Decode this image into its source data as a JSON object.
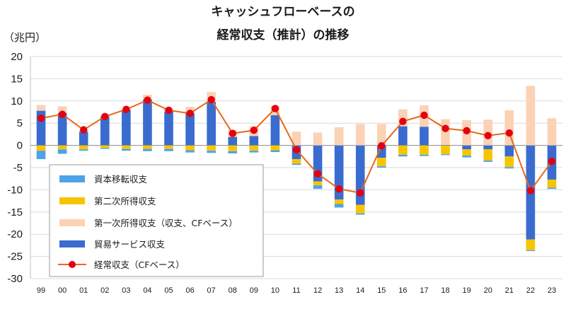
{
  "chart_data": {
    "type": "bar",
    "stacked": true,
    "title": "キャッシュフローベースの",
    "title_line2": "経常収支（推計）の推移",
    "ylabel": "（兆円）",
    "xlabel": "",
    "ylim": [
      -30,
      20
    ],
    "yticks": [
      "20",
      "15",
      "10",
      "5",
      "0",
      "-5",
      "-10",
      "-15",
      "-20",
      "-25",
      "-30"
    ],
    "ytick_values": [
      20,
      15,
      10,
      5,
      0,
      -5,
      -10,
      -15,
      -20,
      -25,
      -30
    ],
    "categories": [
      "99",
      "00",
      "01",
      "02",
      "03",
      "04",
      "05",
      "06",
      "07",
      "08",
      "09",
      "10",
      "11",
      "12",
      "13",
      "14",
      "15",
      "16",
      "17",
      "18",
      "19",
      "20",
      "21",
      "22",
      "23"
    ],
    "grid": true,
    "series": [
      {
        "name": "貿易サービス収支",
        "color": "#3A6CCF",
        "values": [
          7.8,
          7.3,
          3.1,
          6.5,
          8.0,
          10.3,
          7.6,
          7.3,
          9.8,
          1.9,
          2.1,
          6.8,
          -3.1,
          -8.1,
          -12.2,
          -13.4,
          -2.8,
          4.3,
          4.2,
          0.1,
          -0.9,
          -0.9,
          -2.5,
          -21.2,
          -7.7
        ]
      },
      {
        "name": "第二次所得収支",
        "color": "#F7C500",
        "values": [
          -1.2,
          -0.9,
          -0.9,
          -0.6,
          -0.8,
          -0.8,
          -0.8,
          -1.1,
          -1.2,
          -1.3,
          -1.2,
          -1.1,
          -1.0,
          -0.9,
          -1.0,
          -1.9,
          -1.9,
          -2.1,
          -2.1,
          -2.0,
          -1.4,
          -2.5,
          -2.4,
          -2.4,
          -1.8
        ]
      },
      {
        "name": "資本移転収支",
        "color": "#4EA3E6",
        "values": [
          -1.9,
          -1.0,
          -0.3,
          -0.2,
          -0.4,
          -0.5,
          -0.5,
          -0.5,
          -0.5,
          -0.5,
          -0.4,
          -0.4,
          -0.3,
          -0.8,
          -0.8,
          -0.3,
          -0.3,
          -0.4,
          -0.3,
          -0.2,
          -0.4,
          -0.3,
          -0.3,
          -0.2,
          -0.3
        ]
      },
      {
        "name": "第一次所得収支（収支、CFベース）",
        "color": "#FBD2B4",
        "values": [
          1.3,
          1.5,
          0.5,
          0.1,
          0.2,
          1.1,
          0.7,
          1.4,
          2.2,
          1.6,
          2.2,
          2.1,
          3.1,
          2.9,
          4.1,
          4.8,
          4.8,
          3.8,
          4.8,
          5.8,
          5.7,
          5.8,
          7.9,
          13.4,
          6.1
        ]
      }
    ],
    "line_series": {
      "name": "経常収支（CFベース）",
      "color": "#E8691A",
      "marker_color": "#E5000F",
      "values": [
        6.1,
        7.0,
        3.5,
        6.5,
        8.1,
        10.2,
        7.9,
        7.2,
        10.3,
        2.7,
        3.4,
        8.3,
        -1.0,
        -6.4,
        -9.8,
        -10.7,
        -0.1,
        5.4,
        6.8,
        3.8,
        3.3,
        2.2,
        2.8,
        -10.2,
        -3.6
      ]
    },
    "legend": [
      "資本移転収支",
      "第二次所得収支",
      "第一次所得収支（収支、CFベース）",
      "貿易サービス収支",
      "経常収支（CFベース）"
    ],
    "legend_colors": [
      "#4EA3E6",
      "#F7C500",
      "#FBD2B4",
      "#3A6CCF",
      "#E8691A"
    ],
    "legend_position": "bottom-left"
  }
}
